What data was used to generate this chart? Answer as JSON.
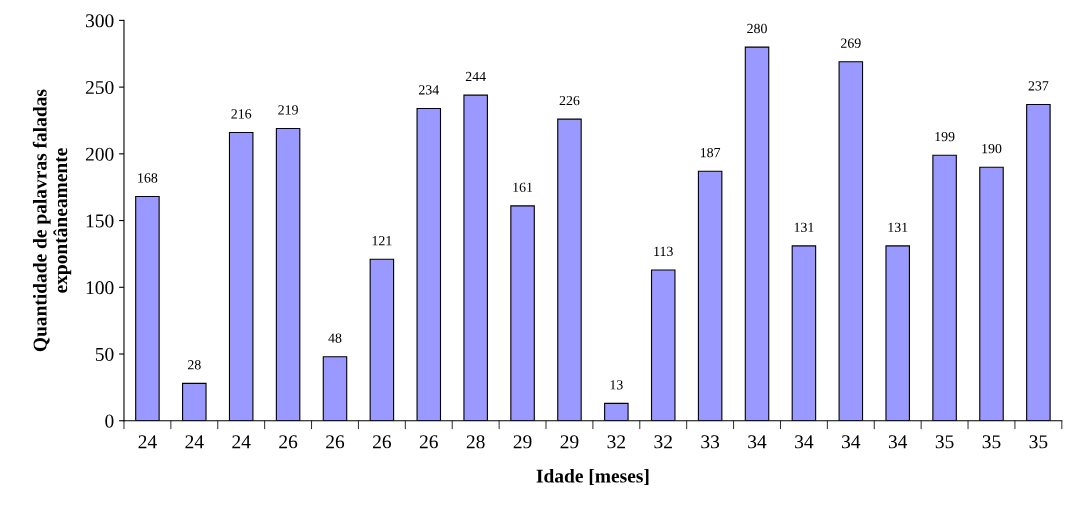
{
  "chart_data": {
    "type": "bar",
    "xlabel": "Idade [meses]",
    "ylabel": "Quantidade de palavras faladas\nexpontâneamente",
    "categories": [
      "24",
      "24",
      "24",
      "26",
      "26",
      "26",
      "26",
      "28",
      "29",
      "29",
      "32",
      "32",
      "33",
      "34",
      "34",
      "34",
      "34",
      "35",
      "35",
      "35"
    ],
    "values": [
      168,
      28,
      216,
      219,
      48,
      121,
      234,
      244,
      161,
      226,
      13,
      113,
      187,
      280,
      131,
      269,
      131,
      199,
      190,
      237
    ],
    "color": "#9999ff",
    "ylim": [
      0,
      300
    ],
    "yticks": [
      0,
      50,
      100,
      150,
      200,
      250,
      300
    ],
    "grid": false,
    "legend": false,
    "data_labels": true
  }
}
